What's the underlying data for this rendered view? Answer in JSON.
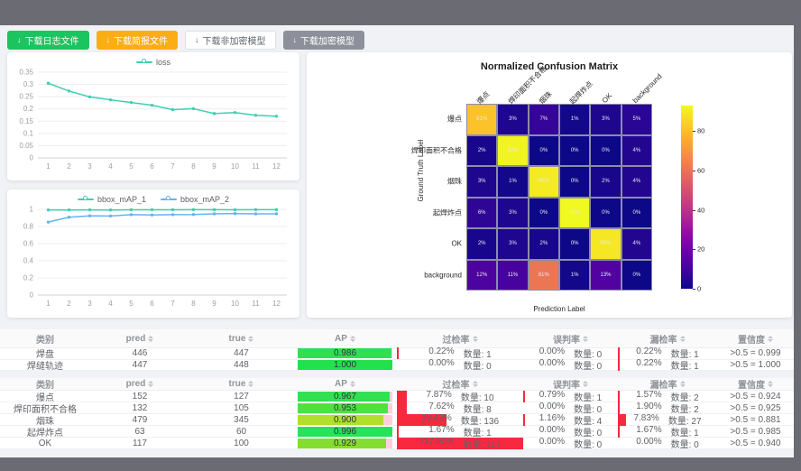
{
  "toolbar": {
    "buttons": [
      {
        "label": "下载日志文件",
        "icon": "download-icon",
        "style": "green"
      },
      {
        "label": "下载简报文件",
        "icon": "download-icon",
        "style": "orange"
      },
      {
        "label": "下载非加密模型",
        "icon": "download-icon",
        "style": "plain"
      },
      {
        "label": "下载加密模型",
        "icon": "download-icon",
        "style": "gray"
      }
    ]
  },
  "chart_data": [
    {
      "type": "line",
      "title": "",
      "x": [
        1,
        2,
        3,
        4,
        5,
        6,
        7,
        8,
        9,
        10,
        11,
        12
      ],
      "series": [
        {
          "name": "loss",
          "color": "#3ecfb2",
          "values": [
            0.305,
            0.273,
            0.249,
            0.237,
            0.226,
            0.215,
            0.197,
            0.201,
            0.181,
            0.185,
            0.174,
            0.17
          ]
        }
      ],
      "yticks": [
        0,
        0.05,
        0.1,
        0.15,
        0.2,
        0.25,
        0.3,
        0.35
      ],
      "ylim": [
        0,
        0.35
      ],
      "legend_position": "top",
      "grid": true
    },
    {
      "type": "line",
      "title": "",
      "x": [
        1,
        2,
        3,
        4,
        5,
        6,
        7,
        8,
        9,
        10,
        11,
        12
      ],
      "series": [
        {
          "name": "bbox_mAP_1",
          "color": "#3ecfb2",
          "values": [
            0.993,
            0.992,
            0.994,
            0.992,
            0.995,
            0.995,
            0.995,
            0.996,
            0.996,
            0.995,
            0.996,
            0.996
          ]
        },
        {
          "name": "bbox_mAP_2",
          "color": "#66b3f2",
          "values": [
            0.851,
            0.908,
            0.924,
            0.922,
            0.938,
            0.934,
            0.938,
            0.94,
            0.948,
            0.95,
            0.948,
            0.948
          ]
        }
      ],
      "yticks": [
        0,
        0.2,
        0.4,
        0.6,
        0.8,
        1
      ],
      "ylim": [
        0,
        1
      ],
      "legend_position": "top",
      "grid": true
    },
    {
      "type": "heatmap",
      "title": "Normalized Confusion Matrix",
      "xlabel": "Prediction Label",
      "ylabel": "Ground Truth Label",
      "categories": [
        "爆点",
        "焊印面积不合格",
        "烟珠",
        "起焊炸点",
        "OK",
        "background"
      ],
      "rows": [
        [
          81,
          3,
          7,
          1,
          3,
          5
        ],
        [
          2,
          92,
          0,
          0,
          0,
          4
        ],
        [
          3,
          1,
          90,
          0,
          2,
          4
        ],
        [
          6,
          3,
          0,
          93,
          0,
          0
        ],
        [
          2,
          3,
          2,
          0,
          89,
          4
        ],
        [
          12,
          11,
          61,
          1,
          13,
          0
        ]
      ],
      "unit": "%",
      "vmax": 93,
      "colorbar_ticks": [
        0,
        20,
        40,
        60,
        80
      ],
      "colormap": "plasma"
    }
  ],
  "tables": [
    {
      "headers": [
        {
          "label": "类别",
          "sortable": false
        },
        {
          "label": "pred",
          "sortable": true
        },
        {
          "label": "true",
          "sortable": true
        },
        {
          "label": "AP",
          "sortable": true
        },
        {
          "label": "过检率",
          "sortable": true
        },
        {
          "label": "误判率",
          "sortable": true
        },
        {
          "label": "漏检率",
          "sortable": true
        },
        {
          "label": "置信度",
          "sortable": true
        }
      ],
      "rows": [
        {
          "name": "焊盘",
          "pred": "446",
          "true": "447",
          "ap": "0.986",
          "ap_color": "#2ee056",
          "overdetect": {
            "pct": "0.22%",
            "count": "数量: 1"
          },
          "misjudge": {
            "pct": "0.00%",
            "count": "数量: 0"
          },
          "miss": {
            "pct": "0.22%",
            "count": "数量: 1"
          },
          "confidence": ">0.5 = 0.999"
        },
        {
          "name": "焊缝轨迹",
          "pred": "447",
          "true": "448",
          "ap": "1.000",
          "ap_color": "#22e14d",
          "overdetect": {
            "pct": "0.00%",
            "count": "数量: 0"
          },
          "misjudge": {
            "pct": "0.00%",
            "count": "数量: 0"
          },
          "miss": {
            "pct": "0.22%",
            "count": "数量: 1"
          },
          "confidence": ">0.5 = 1.000"
        }
      ]
    },
    {
      "headers": [
        {
          "label": "类别",
          "sortable": false
        },
        {
          "label": "pred",
          "sortable": true
        },
        {
          "label": "true",
          "sortable": true
        },
        {
          "label": "AP",
          "sortable": true
        },
        {
          "label": "过检率",
          "sortable": true
        },
        {
          "label": "误判率",
          "sortable": true
        },
        {
          "label": "漏检率",
          "sortable": true
        },
        {
          "label": "置信度",
          "sortable": true
        }
      ],
      "rows": [
        {
          "name": "爆点",
          "pred": "152",
          "true": "127",
          "ap": "0.967",
          "ap_color": "#33e052",
          "overdetect": {
            "pct": "7.87%",
            "count": "数量: 10"
          },
          "misjudge": {
            "pct": "0.79%",
            "count": "数量: 1"
          },
          "miss": {
            "pct": "1.57%",
            "count": "数量: 2"
          },
          "confidence": ">0.5 = 0.924"
        },
        {
          "name": "焊印面积不合格",
          "pred": "132",
          "true": "105",
          "ap": "0.953",
          "ap_color": "#4fe23e",
          "overdetect": {
            "pct": "7.62%",
            "count": "数量: 8"
          },
          "misjudge": {
            "pct": "0.00%",
            "count": "数量: 0"
          },
          "miss": {
            "pct": "1.90%",
            "count": "数量: 2"
          },
          "confidence": ">0.5 = 0.925"
        },
        {
          "name": "烟珠",
          "pred": "479",
          "true": "345",
          "ap": "0.900",
          "ap_color": "#b0e02c",
          "overdetect": {
            "pct": "39.42%",
            "count": "数量: 136"
          },
          "misjudge": {
            "pct": "1.16%",
            "count": "数量: 4"
          },
          "miss": {
            "pct": "7.83%",
            "count": "数量: 27"
          },
          "confidence": ">0.5 = 0.881"
        },
        {
          "name": "起焊炸点",
          "pred": "63",
          "true": "60",
          "ap": "0.996",
          "ap_color": "#26e35b",
          "overdetect": {
            "pct": "1.67%",
            "count": "数量: 1"
          },
          "misjudge": {
            "pct": "0.00%",
            "count": "数量: 0"
          },
          "miss": {
            "pct": "1.67%",
            "count": "数量: 1"
          },
          "confidence": ">0.5 = 0.985"
        },
        {
          "name": "OK",
          "pred": "117",
          "true": "100",
          "ap": "0.929",
          "ap_color": "#84dd31",
          "overdetect": {
            "pct": "117.00%",
            "count": "数量: 117"
          },
          "misjudge": {
            "pct": "0.00%",
            "count": "数量: 0"
          },
          "miss": {
            "pct": "0.00%",
            "count": "数量: 0"
          },
          "confidence": ">0.5 = 0.940"
        }
      ]
    }
  ],
  "colors": {
    "frame": "#6b6b74",
    "content_bg": "#f0f2f5",
    "rate_bar": "#f8283f",
    "ap_remainder": "#ffd0da"
  }
}
